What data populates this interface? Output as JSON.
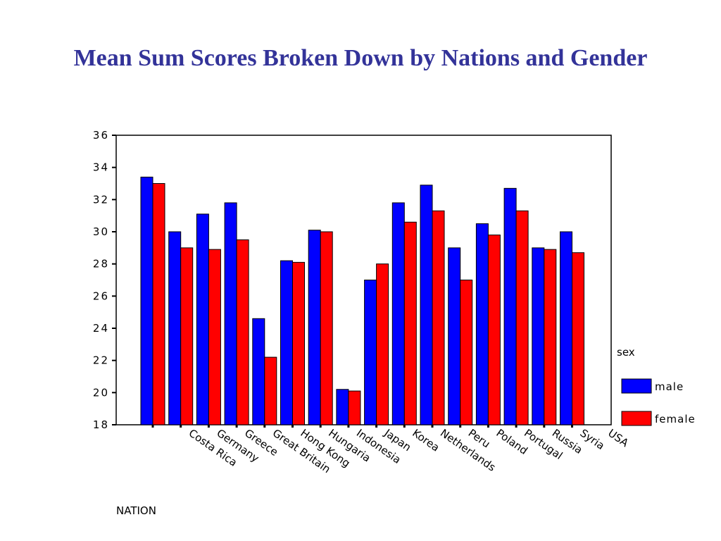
{
  "chart_data": {
    "type": "bar",
    "title": "Mean Sum Scores Broken Down by Nations and Gender",
    "x_label": "NATION",
    "legend_title": "sex",
    "categories": [
      "Costa Rica",
      "Germany",
      "Greece",
      "Great Britain",
      "Hong Kong",
      "Hungaria",
      "Indonesia",
      "Japan",
      "Korea",
      "Netherlands",
      "Peru",
      "Poland",
      "Portugal",
      "Russia",
      "Syria",
      "USA"
    ],
    "series": [
      {
        "name": "male",
        "color": "#0000ff",
        "values": [
          33.4,
          30.0,
          31.1,
          31.8,
          24.6,
          28.2,
          30.1,
          20.2,
          27.0,
          31.8,
          32.9,
          29.0,
          30.5,
          32.7,
          29.0,
          30.0
        ]
      },
      {
        "name": "female",
        "color": "#ff0000",
        "values": [
          33.0,
          29.0,
          28.9,
          29.5,
          22.2,
          28.1,
          30.0,
          20.1,
          28.0,
          30.6,
          31.3,
          27.0,
          29.8,
          31.3,
          28.9,
          28.7
        ]
      }
    ],
    "ylim": [
      18,
      36
    ],
    "yticks": [
      18,
      20,
      22,
      24,
      26,
      28,
      30,
      32,
      34,
      36
    ]
  }
}
